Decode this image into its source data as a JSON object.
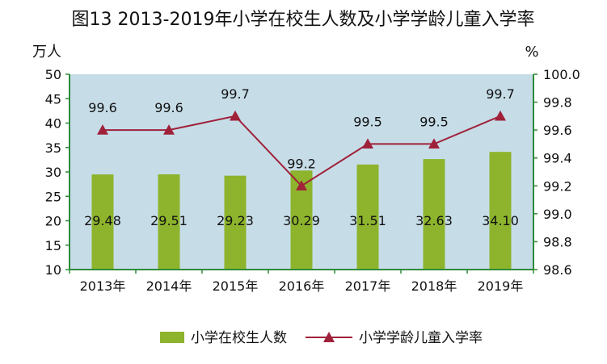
{
  "chart_data": {
    "type": "bar",
    "title": "图13  2013-2019年小学在校生人数及小学学龄儿童入学率",
    "categories": [
      "2013年",
      "2014年",
      "2015年",
      "2016年",
      "2017年",
      "2018年",
      "2019年"
    ],
    "series": [
      {
        "name": "小学在校生人数",
        "type": "bar",
        "axis": "left",
        "values": [
          29.48,
          29.51,
          29.23,
          30.29,
          31.51,
          32.63,
          34.1
        ],
        "labels": [
          "29.48",
          "29.51",
          "29.23",
          "30.29",
          "31.51",
          "32.63",
          "34.10"
        ],
        "color": "#8db42c"
      },
      {
        "name": "小学学龄儿童入学率",
        "type": "line",
        "axis": "right",
        "values": [
          99.6,
          99.6,
          99.7,
          99.2,
          99.5,
          99.5,
          99.7
        ],
        "labels": [
          "99.6",
          "99.6",
          "99.7",
          "99.2",
          "99.5",
          "99.5",
          "99.7"
        ],
        "color": "#a0213a"
      }
    ],
    "y_left": {
      "unit": "万人",
      "range": [
        10,
        50
      ],
      "ticks": [
        "10",
        "15",
        "20",
        "25",
        "30",
        "35",
        "40",
        "45",
        "50"
      ]
    },
    "y_right": {
      "unit": "%",
      "range": [
        98.6,
        100.0
      ],
      "ticks": [
        "98.6",
        "98.8",
        "99.0",
        "99.2",
        "99.4",
        "99.6",
        "99.8",
        "100.0"
      ]
    },
    "plot_background": "#c6dde8",
    "axis_color": "#2e8b3a",
    "grid": false,
    "legend_position": "bottom"
  }
}
